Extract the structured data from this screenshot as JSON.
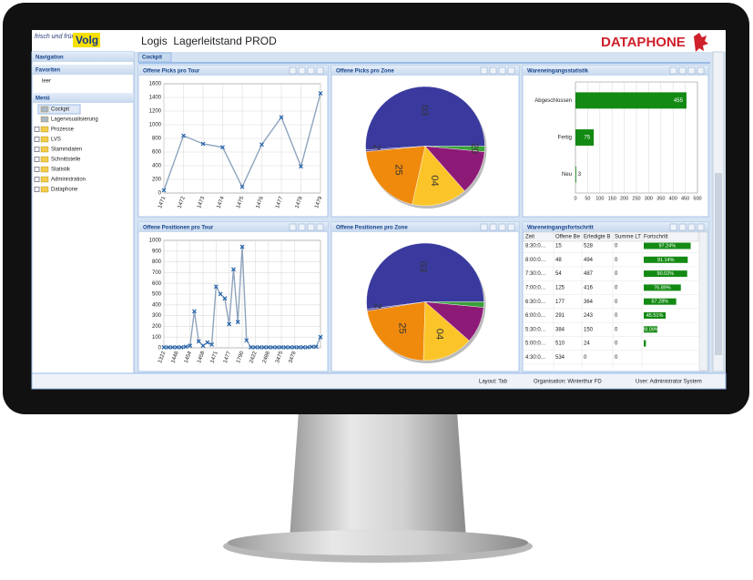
{
  "header": {
    "logo_top": "frisch und fründlich",
    "logo_brand": "Volg",
    "title": "Logis  Lagerleitstand PROD",
    "vendor": "DATAPHONE"
  },
  "navigation": {
    "title": "Navigation",
    "favorites_title": "Favoriten",
    "favorites": [
      "leer"
    ],
    "menu_title": "Menü",
    "menu": [
      "Cockpit",
      "Lagervisualisierung",
      "Prozesse",
      "LVS",
      "Stammdaten",
      "Schnittstelle",
      "Statistik",
      "Administration",
      "Dataphone"
    ]
  },
  "tabs": [
    "Cockpit"
  ],
  "panels": [
    {
      "title": "Offene Picks pro Tour",
      "chart_data": {
        "type": "line",
        "categories": [
          "1471",
          "1472",
          "1473",
          "1474",
          "1475",
          "1476",
          "1477",
          "1478",
          "1479"
        ],
        "values": [
          40,
          840,
          720,
          670,
          90,
          710,
          1110,
          390,
          1460
        ],
        "color": "#8ea4bd",
        "marker_color": "#1f5fa8",
        "ylim": [
          0,
          1600
        ],
        "yticks": [
          0,
          200,
          400,
          600,
          800,
          1000,
          1200,
          1400,
          1600
        ],
        "grid": true
      }
    },
    {
      "title": "Offene Picks pro Zone",
      "chart_data": {
        "type": "pie",
        "categories": [
          "03",
          "20",
          "25",
          "04",
          null,
          "20"
        ],
        "values": [
          51,
          0.5,
          20,
          15,
          12,
          1.5
        ],
        "colors": [
          "#3a3a9e",
          "#5a4aa0",
          "#f08a0c",
          "#fbc52a",
          "#8e1a78",
          "#3aa03a"
        ]
      }
    },
    {
      "title": "Wareneingangsstatistik",
      "chart_data": {
        "type": "hbar",
        "categories": [
          "Abgeschlossen",
          "Fertig",
          "Neu"
        ],
        "values": [
          455,
          75,
          3
        ],
        "color": "#138a13",
        "xlim": [
          0,
          500
        ],
        "xticks": [
          0,
          50,
          100,
          150,
          200,
          250,
          300,
          350,
          400,
          450,
          500
        ],
        "grid": true
      }
    },
    {
      "title": "Offene Positionen pro Tour",
      "chart_data": {
        "type": "line",
        "categories": [
          "1322",
          null,
          null,
          "1448",
          null,
          null,
          "1454",
          null,
          null,
          "1458",
          null,
          null,
          "1471",
          null,
          null,
          "1477",
          null,
          null,
          "1790",
          null,
          null,
          "2422",
          null,
          null,
          "2488",
          null,
          null,
          "3475",
          null,
          null,
          "3478",
          null,
          null,
          null,
          null,
          null,
          null
        ],
        "values": [
          5,
          5,
          5,
          5,
          5,
          10,
          20,
          340,
          60,
          20,
          50,
          30,
          570,
          500,
          460,
          220,
          730,
          240,
          940,
          70,
          5,
          5,
          5,
          5,
          5,
          5,
          5,
          5,
          5,
          5,
          5,
          5,
          5,
          5,
          10,
          10,
          100
        ],
        "color": "#8ea4bd",
        "marker_color": "#1f5fa8",
        "ylim": [
          0,
          1000
        ],
        "yticks": [
          0,
          100,
          200,
          300,
          400,
          500,
          600,
          700,
          800,
          900,
          1000
        ],
        "grid": true
      }
    },
    {
      "title": "Offene Positionen pro Zone",
      "chart_data": {
        "type": "pie",
        "categories": [
          "03",
          "20",
          "25",
          "04",
          null,
          null
        ],
        "values": [
          52,
          0.5,
          22,
          14,
          10,
          1.5
        ],
        "colors": [
          "#3a3a9e",
          "#5a4aa0",
          "#f08a0c",
          "#fbc52a",
          "#8e1a78",
          "#3aa03a"
        ]
      }
    },
    {
      "title": "Wareneingangsfortschritt",
      "table": {
        "columns": [
          "Zeit",
          "Offene Be",
          "Erledigte B",
          "Summe LT",
          "Fortschritt"
        ],
        "rows": [
          [
            "8:30:0…",
            15,
            528,
            0
          ],
          [
            "8:00:0…",
            48,
            494,
            0
          ],
          [
            "7:30:0…",
            54,
            487,
            0
          ],
          [
            "7:00:0…",
            125,
            416,
            0
          ],
          [
            "6:30:0…",
            177,
            364,
            0
          ],
          [
            "6:00:0…",
            291,
            243,
            0
          ],
          [
            "5:30:0…",
            384,
            150,
            0
          ],
          [
            "5:00:0…",
            510,
            24,
            0
          ],
          [
            "4:30:0…",
            534,
            0,
            0
          ]
        ],
        "progress": {
          "values": [
            97.24,
            91.14,
            90.02,
            76.89,
            67.28,
            45.51,
            28.09,
            4.49,
            0
          ],
          "value_labels": [
            "97.24%",
            "91.14%",
            "90.02%",
            "76.89%",
            "67.28%",
            "45.51%",
            "28.09%",
            null,
            null
          ],
          "xlim": [
            0,
            100
          ],
          "color": "#138a13"
        }
      }
    }
  ],
  "status_bar": [
    "Layout: Tab",
    "Organisation: Winterthur FD",
    "User: Administrator System"
  ]
}
